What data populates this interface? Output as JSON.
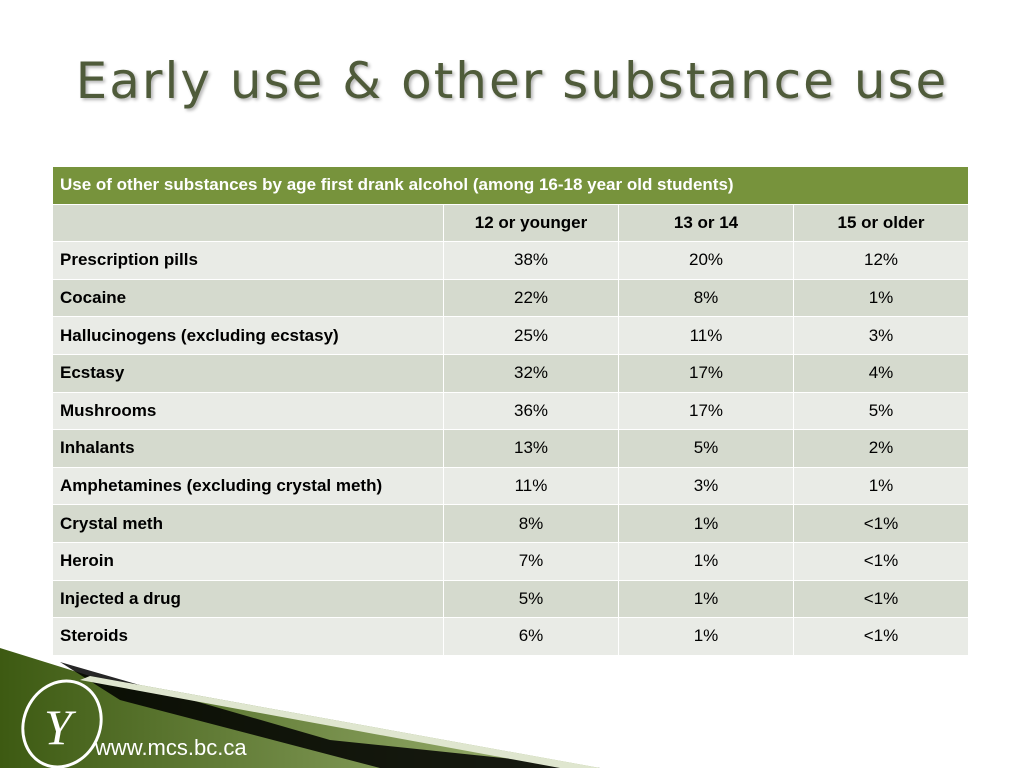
{
  "title": "Early use & other substance use",
  "table": {
    "caption": "Use of other substances by age first drank alcohol (among 16-18 year old students)",
    "columns": [
      "12 or younger",
      "13 or 14",
      "15 or older"
    ],
    "rows": [
      [
        "Prescription pills",
        "38%",
        "20%",
        "12%"
      ],
      [
        "Cocaine",
        "22%",
        "8%",
        "1%"
      ],
      [
        "Hallucinogens (excluding ecstasy)",
        "25%",
        "11%",
        "3%"
      ],
      [
        "Ecstasy",
        "32%",
        "17%",
        "4%"
      ],
      [
        "Mushrooms",
        "36%",
        "17%",
        "5%"
      ],
      [
        "Inhalants",
        "13%",
        "5%",
        "2%"
      ],
      [
        "Amphetamines (excluding crystal meth)",
        "11%",
        "3%",
        "1%"
      ],
      [
        "Crystal meth",
        "8%",
        "1%",
        "<1%"
      ],
      [
        "Heroin",
        "7%",
        "1%",
        "<1%"
      ],
      [
        "Injected a drug",
        "5%",
        "1%",
        "<1%"
      ],
      [
        "Steroids",
        "6%",
        "1%",
        "<1%"
      ]
    ]
  },
  "footer": {
    "url": "www.mcs.bc.ca"
  }
}
